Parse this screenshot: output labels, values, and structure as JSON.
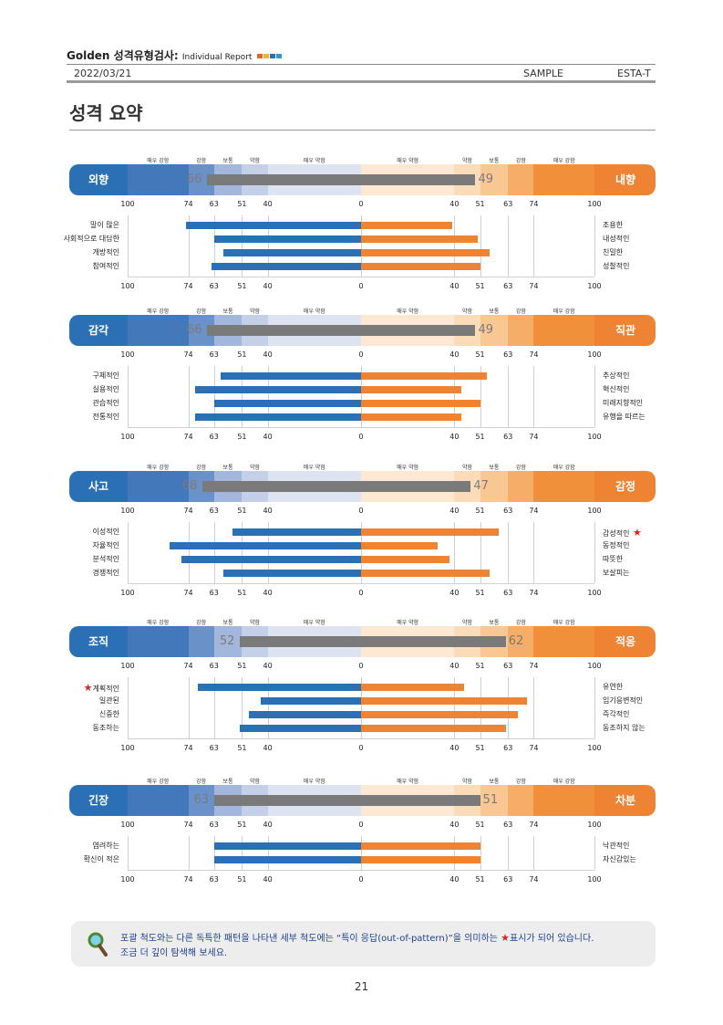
{
  "header": {
    "title": "Golden 성격유형검사:",
    "subtitle": "Individual Report",
    "squares": [
      "#e0632b",
      "#f2b035",
      "#2c6fb5",
      "#2a9bd0"
    ],
    "date": "2022/03/21",
    "sample": "SAMPLE",
    "code": "ESTA-T"
  },
  "page_title": "성격 요약",
  "level_labels_left": [
    "매우 강함",
    "강함",
    "보통",
    "약함",
    "매우 약함"
  ],
  "level_labels_right": [
    "매우 약함",
    "약함",
    "보통",
    "강함",
    "매우 강함"
  ],
  "ticks_left": [
    "100",
    "74",
    "63",
    "51",
    "40"
  ],
  "ticks_center": "0",
  "ticks_right": [
    "40",
    "51",
    "63",
    "74",
    "100"
  ],
  "colors": {
    "blue": "#2b6fb4",
    "orange": "#ee8433"
  },
  "sections": [
    {
      "left": "외향",
      "right": "내향",
      "left_score": 66,
      "right_score": 49,
      "items": [
        {
          "l": "말이 많은",
          "r": "조용한",
          "lv": 75,
          "rv": 39
        },
        {
          "l": "사회적으로 대담한",
          "r": "내성적인",
          "lv": 63,
          "rv": 50
        },
        {
          "l": "개방적인",
          "r": "친밀한",
          "lv": 59,
          "rv": 55
        },
        {
          "l": "참여적인",
          "r": "성찰적인",
          "lv": 64,
          "rv": 51
        }
      ]
    },
    {
      "left": "감각",
      "right": "직관",
      "left_score": 66,
      "right_score": 49,
      "items": [
        {
          "l": "구체적인",
          "r": "추상적인",
          "lv": 60,
          "rv": 54
        },
        {
          "l": "실용적인",
          "r": "혁신적인",
          "lv": 71,
          "rv": 43
        },
        {
          "l": "관습적인",
          "r": "미래지향적인",
          "lv": 63,
          "rv": 51
        },
        {
          "l": "전통적인",
          "r": "유행을 따르는",
          "lv": 71,
          "rv": 43
        }
      ]
    },
    {
      "left": "사고",
      "right": "감정",
      "left_score": 68,
      "right_score": 47,
      "items": [
        {
          "l": "이성적인",
          "r": "감성적인",
          "lv": 55,
          "rv": 59,
          "star_r": true
        },
        {
          "l": "자율적인",
          "r": "동정적인",
          "lv": 82,
          "rv": 33
        },
        {
          "l": "분석적인",
          "r": "따뜻한",
          "lv": 77,
          "rv": 38
        },
        {
          "l": "경쟁적인",
          "r": "보살피는",
          "lv": 59,
          "rv": 55
        }
      ]
    },
    {
      "left": "조직",
      "right": "적응",
      "left_score": 52,
      "right_score": 62,
      "items": [
        {
          "l": "계획적인",
          "r": "유연한",
          "lv": 70,
          "rv": 44,
          "star_l": true
        },
        {
          "l": "일관된",
          "r": "임기응변적인",
          "lv": 43,
          "rv": 71
        },
        {
          "l": "신중한",
          "r": "즉각적인",
          "lv": 48,
          "rv": 67
        },
        {
          "l": "동조하는",
          "r": "동조하지 않는",
          "lv": 52,
          "rv": 62
        }
      ]
    },
    {
      "left": "긴장",
      "right": "차분",
      "left_score": 63,
      "right_score": 51,
      "items": [
        {
          "l": "염려하는",
          "r": "낙관적인",
          "lv": 63,
          "rv": 51
        },
        {
          "l": "확신이 적은",
          "r": "자신감있는",
          "lv": 63,
          "rv": 51
        }
      ]
    }
  ],
  "note": {
    "line1a": "포괄 척도와는 다른 독특한 패턴을 나타낸 세부 척도에는 “특이 응답(out-of-pattern)”을 의미하는",
    "line1b": "표시가 되어 있습니다.",
    "line2": "조금 더 깊이 탐색해 보세요.",
    "star": "★"
  },
  "page_number": "21"
}
